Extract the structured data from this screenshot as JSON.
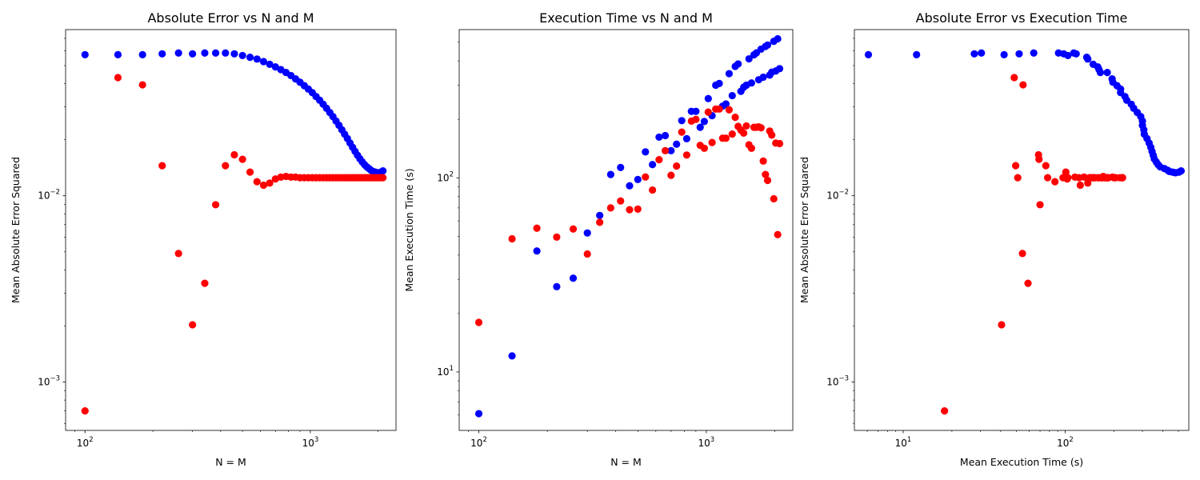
{
  "colors": {
    "series_a": "#0000ff",
    "series_b": "#ff0000"
  },
  "chart_data": [
    {
      "type": "scatter",
      "title": "Absolute Error vs N and M",
      "xlabel": "N = M",
      "ylabel": "Mean Absolute Error Squared",
      "xscale": "log",
      "yscale": "log",
      "xlim": [
        82,
        2400
      ],
      "ylim": [
        0.00055,
        0.078
      ],
      "xticks": [
        {
          "value": 100,
          "base": "10",
          "exp": "2"
        },
        {
          "value": 1000,
          "base": "10",
          "exp": "3"
        }
      ],
      "yticks": [
        {
          "value": 0.001,
          "base": "10",
          "exp": "−3"
        },
        {
          "value": 0.01,
          "base": "10",
          "exp": "−2"
        }
      ],
      "legend": "none",
      "grid": false,
      "series": [
        {
          "color": "#0000ff",
          "x": [
            100,
            140,
            180,
            220,
            260,
            300,
            340,
            380,
            420,
            460,
            500,
            540,
            580,
            620,
            660,
            700,
            740,
            780,
            820,
            860,
            900,
            940,
            980,
            1020,
            1060,
            1100,
            1140,
            1180,
            1220,
            1260,
            1300,
            1340,
            1380,
            1420,
            1460,
            1500,
            1540,
            1580,
            1620,
            1660,
            1700,
            1740,
            1780,
            1820,
            1860,
            1900,
            1940,
            1980,
            2020,
            2060,
            2100
          ],
          "y": [
            0.0572,
            0.0572,
            0.0572,
            0.0578,
            0.0584,
            0.0578,
            0.0584,
            0.0584,
            0.0584,
            0.0578,
            0.0566,
            0.0554,
            0.0542,
            0.0525,
            0.0508,
            0.0492,
            0.0476,
            0.0459,
            0.0442,
            0.0424,
            0.0407,
            0.039,
            0.0374,
            0.0358,
            0.0341,
            0.0326,
            0.031,
            0.0295,
            0.028,
            0.0266,
            0.0252,
            0.0239,
            0.0226,
            0.0214,
            0.0203,
            0.0192,
            0.0182,
            0.0173,
            0.0165,
            0.0158,
            0.0152,
            0.0147,
            0.0143,
            0.014,
            0.0137,
            0.0135,
            0.0134,
            0.0133,
            0.0133,
            0.0134,
            0.0136
          ]
        },
        {
          "color": "#ff0000",
          "x": [
            100,
            140,
            180,
            220,
            260,
            300,
            340,
            380,
            420,
            460,
            500,
            540,
            580,
            620,
            660,
            700,
            740,
            780,
            820,
            860,
            900,
            940,
            980,
            1020,
            1060,
            1100,
            1140,
            1180,
            1220,
            1260,
            1300,
            1340,
            1380,
            1420,
            1460,
            1500,
            1540,
            1580,
            1620,
            1660,
            1700,
            1740,
            1780,
            1820,
            1860,
            1900,
            1940,
            1980,
            2020,
            2060,
            2100
          ],
          "y": [
            0.0007,
            0.0431,
            0.0394,
            0.0145,
            0.0049,
            0.00203,
            0.00339,
            0.00895,
            0.0145,
            0.0166,
            0.0157,
            0.0134,
            0.0119,
            0.0114,
            0.0117,
            0.0123,
            0.0126,
            0.0127,
            0.0126,
            0.0126,
            0.0125,
            0.0125,
            0.0125,
            0.0125,
            0.0125,
            0.0125,
            0.0125,
            0.0125,
            0.0125,
            0.0125,
            0.0125,
            0.0125,
            0.0125,
            0.0125,
            0.0125,
            0.0125,
            0.0125,
            0.0125,
            0.0125,
            0.0125,
            0.0125,
            0.0125,
            0.0125,
            0.0125,
            0.0125,
            0.0125,
            0.0125,
            0.0125,
            0.0125,
            0.0125,
            0.0125
          ]
        }
      ]
    },
    {
      "type": "scatter",
      "title": "Execution Time vs N and M",
      "xlabel": "N = M",
      "ylabel": "Mean Execution Time (s)",
      "xscale": "log",
      "yscale": "log",
      "xlim": [
        82,
        2400
      ],
      "ylim": [
        5.0,
        580
      ],
      "xticks": [
        {
          "value": 100,
          "base": "10",
          "exp": "2"
        },
        {
          "value": 1000,
          "base": "10",
          "exp": "3"
        }
      ],
      "yticks": [
        {
          "value": 10,
          "base": "10",
          "exp": "1"
        },
        {
          "value": 100,
          "base": "10",
          "exp": "2"
        }
      ],
      "legend": "none",
      "grid": false,
      "series": [
        {
          "color": "#0000ff",
          "x": [
            100,
            140,
            180,
            220,
            260,
            300,
            340,
            380,
            420,
            460,
            500,
            540,
            580,
            620,
            660,
            700,
            740,
            780,
            820,
            860,
            900,
            940,
            980,
            1020,
            1060,
            1100,
            1140,
            1180,
            1220,
            1260,
            1300,
            1340,
            1380,
            1420,
            1460,
            1500,
            1540,
            1580,
            1620,
            1660,
            1700,
            1740,
            1780,
            1820,
            1860,
            1900,
            1940,
            1980,
            2020,
            2060,
            2100
          ],
          "y": [
            6.1,
            12.1,
            42,
            27.5,
            30.4,
            52,
            64,
            104,
            113,
            91,
            98,
            136,
            117,
            162,
            165,
            138,
            149,
            197,
            159,
            220,
            220,
            182,
            195,
            256,
            209,
            300,
            306,
            234,
            240,
            344,
            265,
            375,
            386,
            279,
            293,
            300,
            410,
            308,
            430,
            440,
            320,
            460,
            330,
            475,
            483,
            338,
            350,
            505,
            355,
            520,
            365
          ]
        },
        {
          "color": "#ff0000",
          "x": [
            100,
            140,
            180,
            220,
            260,
            300,
            340,
            380,
            420,
            460,
            500,
            540,
            580,
            620,
            660,
            700,
            740,
            780,
            820,
            860,
            900,
            940,
            980,
            1020,
            1060,
            1100,
            1140,
            1180,
            1220,
            1260,
            1300,
            1340,
            1380,
            1420,
            1460,
            1500,
            1540,
            1580,
            1620,
            1660,
            1700,
            1740,
            1780,
            1820,
            1860,
            1900,
            1940,
            1980,
            2020,
            2060,
            2100
          ],
          "y": [
            18,
            48.5,
            55,
            49.5,
            54.5,
            40.5,
            59,
            70,
            76,
            68.5,
            69,
            101,
            86.5,
            124,
            138,
            103,
            115,
            172,
            131,
            196,
            200,
            147,
            142,
            218,
            152,
            226,
            226,
            160,
            160,
            224,
            168,
            205,
            184,
            176,
            170,
            185,
            148,
            142,
            182,
            182,
            183,
            181,
            122,
            104,
            97,
            174,
            166,
            78,
            151,
            51,
            150
          ]
        }
      ]
    },
    {
      "type": "scatter",
      "title": "Absolute Error vs Execution Time",
      "xlabel": "Mean Execution Time (s)",
      "ylabel": "Mean Absolute Error Squared",
      "xscale": "log",
      "yscale": "log",
      "xlim": [
        5.0,
        580
      ],
      "ylim": [
        0.00055,
        0.078
      ],
      "xticks": [
        {
          "value": 10,
          "base": "10",
          "exp": "1"
        },
        {
          "value": 100,
          "base": "10",
          "exp": "2"
        }
      ],
      "yticks": [
        {
          "value": 0.001,
          "base": "10",
          "exp": "−3"
        },
        {
          "value": 0.01,
          "base": "10",
          "exp": "−2"
        }
      ],
      "legend": "none",
      "grid": false,
      "series": [
        {
          "color": "#0000ff",
          "x": [
            6.1,
            12.1,
            27.5,
            30.4,
            42,
            52,
            64,
            91,
            98,
            104,
            113,
            117,
            136,
            138,
            149,
            159,
            162,
            165,
            182,
            195,
            197,
            209,
            220,
            220,
            234,
            240,
            256,
            265,
            279,
            293,
            300,
            300,
            306,
            308,
            320,
            330,
            338,
            344,
            350,
            355,
            365,
            375,
            386,
            410,
            430,
            440,
            460,
            475,
            483,
            505,
            520
          ],
          "y": [
            0.0572,
            0.0572,
            0.0578,
            0.0584,
            0.0572,
            0.0578,
            0.0584,
            0.0584,
            0.0578,
            0.0566,
            0.0584,
            0.0578,
            0.0554,
            0.0542,
            0.0508,
            0.0492,
            0.0476,
            0.0459,
            0.0459,
            0.0424,
            0.0407,
            0.039,
            0.0374,
            0.0358,
            0.0341,
            0.0326,
            0.031,
            0.0295,
            0.028,
            0.0266,
            0.0252,
            0.0239,
            0.0226,
            0.0214,
            0.0203,
            0.0192,
            0.0182,
            0.0173,
            0.0165,
            0.0158,
            0.0152,
            0.0147,
            0.0143,
            0.014,
            0.0137,
            0.0135,
            0.0134,
            0.0133,
            0.0133,
            0.0134,
            0.0136
          ]
        },
        {
          "color": "#ff0000",
          "x": [
            18,
            48.5,
            55,
            49.5,
            54.5,
            40.5,
            59,
            70,
            76,
            68.5,
            69,
            101,
            86.5,
            124,
            138,
            103,
            115,
            172,
            131,
            196,
            200,
            147,
            142,
            218,
            152,
            226,
            226,
            160,
            160,
            224,
            168,
            205,
            184,
            176,
            170,
            185,
            148,
            142,
            182,
            182,
            183,
            181,
            122,
            104,
            97,
            174,
            166,
            78,
            151,
            51,
            150
          ],
          "y": [
            0.0007,
            0.0431,
            0.0394,
            0.0145,
            0.0049,
            0.00203,
            0.00339,
            0.00895,
            0.0145,
            0.0166,
            0.0157,
            0.0134,
            0.0119,
            0.0114,
            0.0117,
            0.0123,
            0.0126,
            0.0127,
            0.0126,
            0.0126,
            0.0125,
            0.0125,
            0.0125,
            0.0125,
            0.0125,
            0.0125,
            0.0125,
            0.0125,
            0.0125,
            0.0125,
            0.0125,
            0.0125,
            0.0125,
            0.0125,
            0.0125,
            0.0125,
            0.0125,
            0.0125,
            0.0125,
            0.0125,
            0.0125,
            0.0125,
            0.0125,
            0.0125,
            0.0125,
            0.0125,
            0.0125,
            0.0125,
            0.0125,
            0.0125,
            0.0125
          ]
        }
      ]
    }
  ]
}
